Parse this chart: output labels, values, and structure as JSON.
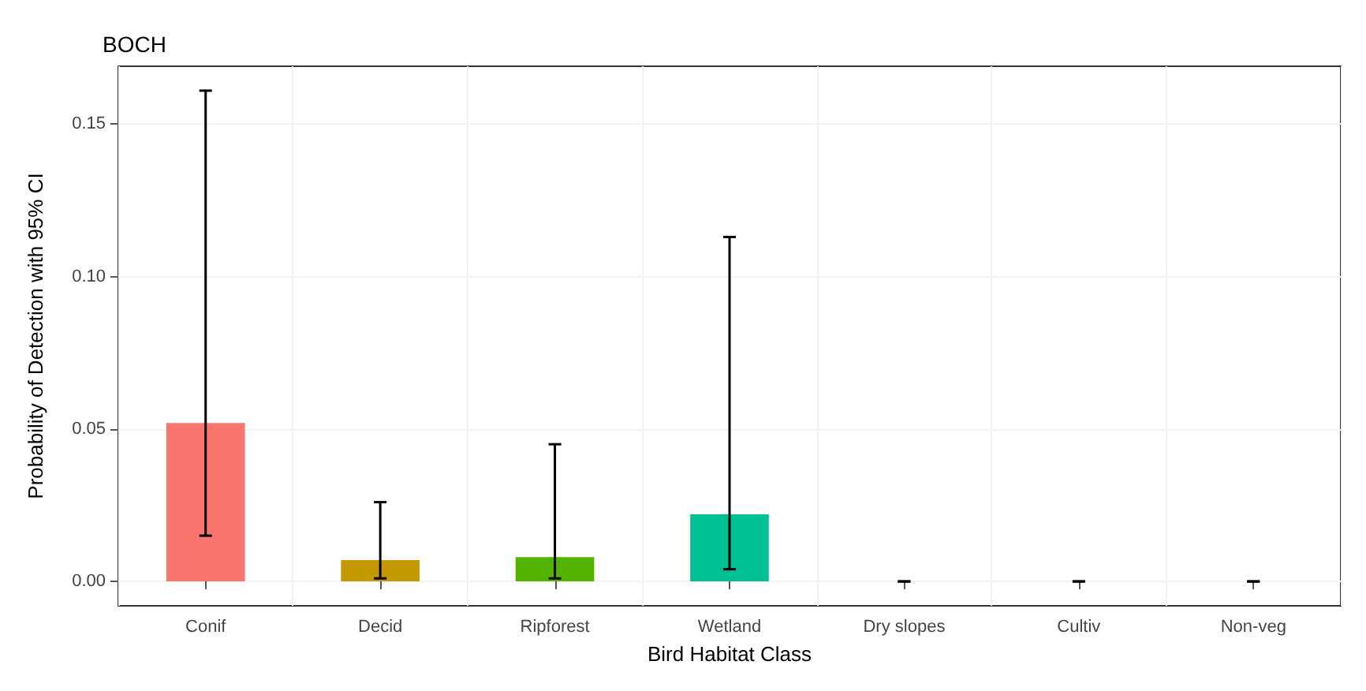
{
  "chart_data": {
    "type": "bar",
    "title": "BOCH",
    "xlabel": "Bird Habitat Class",
    "ylabel": "Probability of Detection with 95% CI",
    "categories": [
      "Conif",
      "Decid",
      "Ripforest",
      "Wetland",
      "Dry slopes",
      "Cultiv",
      "Non-veg"
    ],
    "values": [
      0.052,
      0.007,
      0.008,
      0.022,
      0,
      0,
      0
    ],
    "colors": [
      "#f8766d",
      "#c49a00",
      "#53b400",
      "#00c094",
      "#00b6eb",
      "#a58aff",
      "#fb61d7"
    ],
    "errors": [
      [
        0.015,
        0.161
      ],
      [
        0.001,
        0.026
      ],
      [
        0.001,
        0.045
      ],
      [
        0.004,
        0.113
      ],
      [
        0,
        0
      ],
      [
        0,
        0
      ],
      [
        0,
        0
      ]
    ],
    "ylim": [
      -0.008,
      0.169
    ],
    "yticks": [
      {
        "value": 0,
        "label": "0.00"
      },
      {
        "value": 0.05,
        "label": "0.05"
      },
      {
        "value": 0.1,
        "label": "0.10"
      },
      {
        "value": 0.15,
        "label": "0.15"
      }
    ],
    "grid": true
  }
}
